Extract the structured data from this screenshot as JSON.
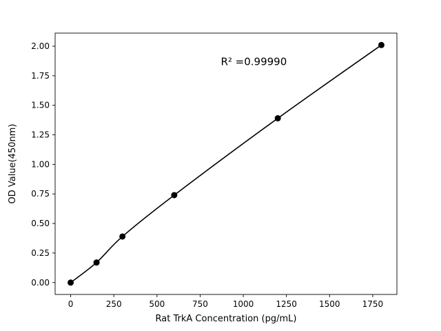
{
  "chart_data": {
    "type": "scatter",
    "title": "",
    "xlabel": "Rat TrkA Concentration (pg/mL)",
    "ylabel": "OD Value(450nm)",
    "x": [
      0,
      150,
      300,
      600,
      1200,
      1800
    ],
    "y": [
      0.0,
      0.17,
      0.39,
      0.74,
      1.39,
      2.01
    ],
    "fit_type": "smooth-curve",
    "annotation": {
      "text": "R² =0.99990",
      "x": 870,
      "y": 1.84
    },
    "xlim": [
      -90,
      1890
    ],
    "ylim": [
      -0.1005,
      2.111
    ],
    "xticks": [
      0,
      250,
      500,
      750,
      1000,
      1250,
      1500,
      1750
    ],
    "xtick_labels": [
      "0",
      "250",
      "500",
      "750",
      "1000",
      "1250",
      "1500",
      "1750"
    ],
    "yticks": [
      0.0,
      0.25,
      0.5,
      0.75,
      1.0,
      1.25,
      1.5,
      1.75,
      2.0
    ],
    "ytick_labels": [
      "0.00",
      "0.25",
      "0.50",
      "0.75",
      "1.00",
      "1.25",
      "1.50",
      "1.75",
      "2.00"
    ],
    "grid": false,
    "legend": "none",
    "line_color": "#000000",
    "marker_color": "#000000",
    "background_color": "#ffffff"
  }
}
